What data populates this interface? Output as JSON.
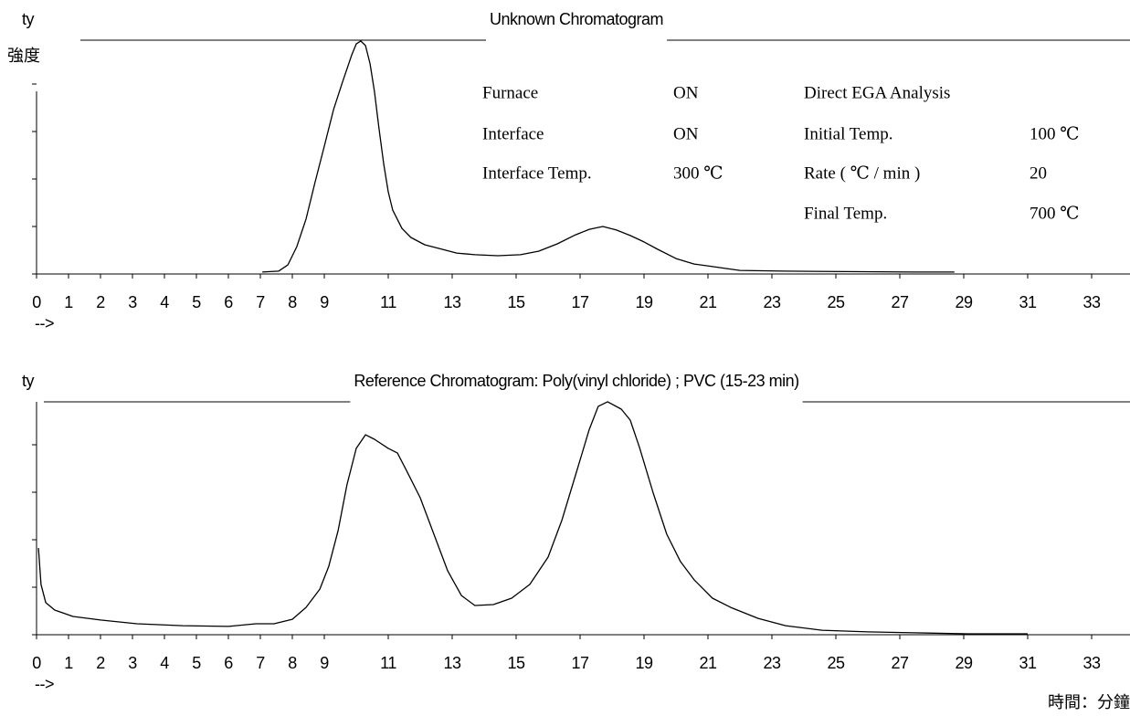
{
  "chart_data": [
    {
      "type": "line",
      "title": "Unknown Chromatogram",
      "y_label": "ty",
      "x_label": "-->",
      "xlim": [
        0,
        34.2
      ],
      "xticks": [
        0,
        1,
        2,
        3,
        4,
        5,
        6,
        7,
        8,
        9,
        11,
        13,
        15,
        17,
        19,
        21,
        23,
        25,
        27,
        29,
        31,
        33
      ],
      "ylim": [
        0,
        100
      ],
      "yticks": [
        0,
        20,
        40,
        60,
        80
      ],
      "color": "#000000",
      "x": [
        7.06,
        7.57,
        7.86,
        8.14,
        8.43,
        8.71,
        9.0,
        9.29,
        9.57,
        9.86,
        10.0,
        10.14,
        10.29,
        10.43,
        10.57,
        10.71,
        10.86,
        11.0,
        11.14,
        11.43,
        11.71,
        12.14,
        12.57,
        13.14,
        13.71,
        14.43,
        15.14,
        15.71,
        16.29,
        16.86,
        17.29,
        17.71,
        18.14,
        18.57,
        19.0,
        19.43,
        20.0,
        20.57,
        21.14,
        22.0,
        23.43,
        27.43,
        28.71
      ],
      "values": [
        0.8,
        1.2,
        3.8,
        11.5,
        23.1,
        38.5,
        53.8,
        69.2,
        80.8,
        92.3,
        96.9,
        98.1,
        96.2,
        88.5,
        76.9,
        61.5,
        46.2,
        34.6,
        26.9,
        19.2,
        15.4,
        12.3,
        10.8,
        8.8,
        8.1,
        7.7,
        8.1,
        9.6,
        12.7,
        16.5,
        18.8,
        20.0,
        18.5,
        16.2,
        13.5,
        10.4,
        6.5,
        4.2,
        3.1,
        1.5,
        1.2,
        0.8,
        0.8
      ],
      "annotations": [
        "Furnace",
        "ON",
        "Direct EGA Analysis",
        "Interface",
        "ON",
        "Initial Temp.",
        "100 ℃",
        "Interface Temp.",
        "300 ℃",
        "Rate ( ℃ / min )",
        "20",
        "Final Temp.",
        "700 ℃"
      ]
    },
    {
      "type": "line",
      "title": "Reference Chromatogram: Poly(vinyl chloride) ; PVC (15-23 min)",
      "y_label": "ty",
      "x_label": "-->",
      "xlim": [
        0,
        34.2
      ],
      "xticks": [
        0,
        1,
        2,
        3,
        4,
        5,
        6,
        7,
        8,
        9,
        11,
        13,
        15,
        17,
        19,
        21,
        23,
        25,
        27,
        29,
        31,
        33
      ],
      "ylim": [
        0,
        100
      ],
      "yticks": [
        0,
        20,
        40,
        60,
        80
      ],
      "color": "#000000",
      "x": [
        0.06,
        0.14,
        0.29,
        0.57,
        1.14,
        2.0,
        3.14,
        4.57,
        6.0,
        6.86,
        7.43,
        8.0,
        8.43,
        8.86,
        9.14,
        9.43,
        9.71,
        10.0,
        10.29,
        10.57,
        11.0,
        11.29,
        11.57,
        12.0,
        12.43,
        12.86,
        13.29,
        13.71,
        14.29,
        14.86,
        15.43,
        16.0,
        16.43,
        16.86,
        17.29,
        17.57,
        17.86,
        18.29,
        18.57,
        18.86,
        19.29,
        19.71,
        20.14,
        20.57,
        21.14,
        21.71,
        22.57,
        23.43,
        24.57,
        26.0,
        27.43,
        29.14,
        31.0
      ],
      "values": [
        36.5,
        21.2,
        13.5,
        10.4,
        7.7,
        6.2,
        4.6,
        3.8,
        3.5,
        4.6,
        4.6,
        6.5,
        11.5,
        19.2,
        28.8,
        43.8,
        63.1,
        78.5,
        84.2,
        82.3,
        78.5,
        76.5,
        69.2,
        57.7,
        42.3,
        26.9,
        16.5,
        12.3,
        12.7,
        15.4,
        21.2,
        32.7,
        48.1,
        67.3,
        86.5,
        96.2,
        98.1,
        95.0,
        90.4,
        78.8,
        59.6,
        42.3,
        30.8,
        23.1,
        15.4,
        11.5,
        6.9,
        3.8,
        1.9,
        1.2,
        0.8,
        0.4,
        0.4
      ]
    }
  ],
  "y_label_zh": "強度",
  "x_label_zh": "時間：分鐘"
}
